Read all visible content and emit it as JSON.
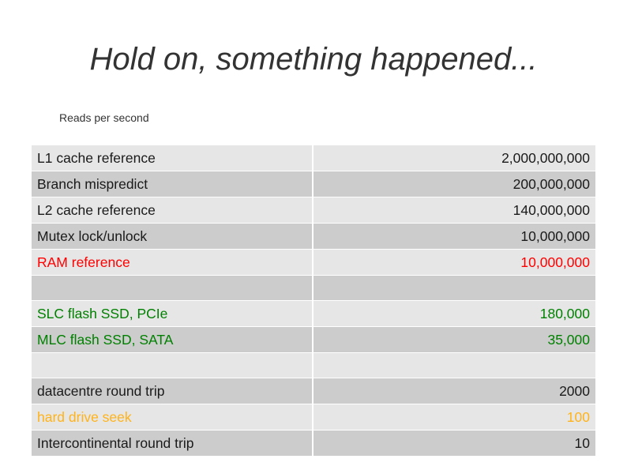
{
  "slide": {
    "title": "Hold on, something happened...",
    "subtitle": "Reads per second"
  },
  "colors": {
    "default": "#1a1a1a",
    "red": "#ff0000",
    "green": "#008000",
    "orange": "#ffb31a"
  },
  "rows": [
    {
      "label": "L1 cache reference",
      "value": "2,000,000,000",
      "color": "default"
    },
    {
      "label": "Branch mispredict",
      "value": "200,000,000",
      "color": "default"
    },
    {
      "label": "L2 cache reference",
      "value": "140,000,000",
      "color": "default"
    },
    {
      "label": "Mutex lock/unlock",
      "value": "10,000,000",
      "color": "default"
    },
    {
      "label": "RAM reference",
      "value": "10,000,000",
      "color": "red"
    },
    {
      "label": "",
      "value": "",
      "color": "default"
    },
    {
      "label": "SLC flash SSD, PCIe",
      "value": "180,000",
      "color": "green"
    },
    {
      "label": "MLC flash SSD, SATA",
      "value": "35,000",
      "color": "green"
    },
    {
      "label": "",
      "value": "",
      "color": "default"
    },
    {
      "label": "datacentre round trip",
      "value": "2000",
      "color": "default"
    },
    {
      "label": "hard drive seek",
      "value": "100",
      "color": "orange"
    },
    {
      "label": "Intercontinental round trip",
      "value": "10",
      "color": "default"
    }
  ]
}
